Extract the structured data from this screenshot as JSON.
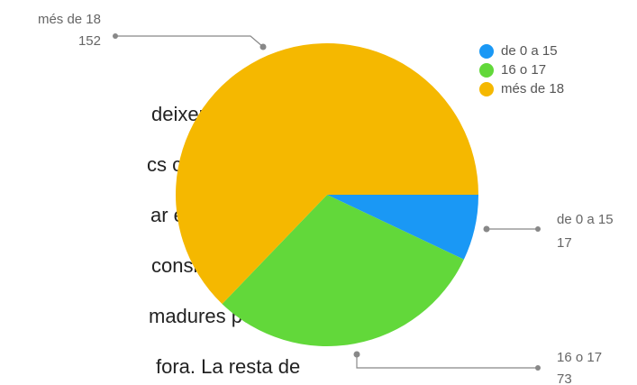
{
  "page_text": {
    "lines": [
      "deixem fora",
      "cs com que",
      "ar en una",
      "considerem",
      "madures per",
      "fora. La resta de"
    ]
  },
  "chart_data": {
    "type": "pie",
    "categories": [
      "de 0 a 15",
      "16 o 17",
      "més de 18"
    ],
    "values": [
      17,
      73,
      152
    ],
    "colors": [
      "#1a98f5",
      "#62d83a",
      "#f5b800"
    ],
    "legend": "top-right"
  }
}
